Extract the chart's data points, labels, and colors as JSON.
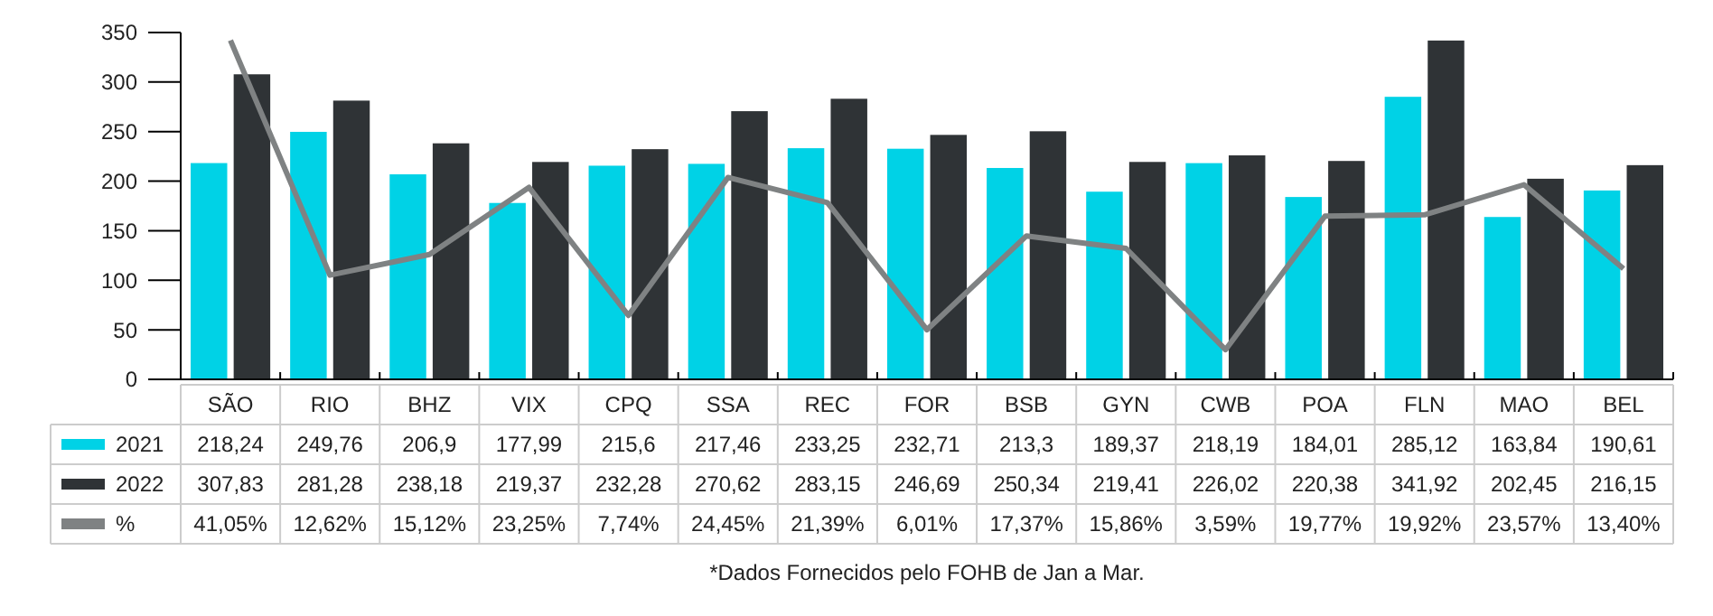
{
  "chart_data": {
    "type": "bar",
    "categories": [
      "SÃO",
      "RIO",
      "BHZ",
      "VIX",
      "CPQ",
      "SSA",
      "REC",
      "FOR",
      "BSB",
      "GYN",
      "CWB",
      "POA",
      "FLN",
      "MAO",
      "BEL"
    ],
    "series": [
      {
        "name": "2021",
        "color": "#00d2e6",
        "values": [
          218.24,
          249.76,
          206.9,
          177.99,
          215.6,
          217.46,
          233.25,
          232.71,
          213.3,
          189.37,
          218.19,
          184.01,
          285.12,
          163.84,
          190.61
        ],
        "value_labels": [
          "218,24",
          "249,76",
          "206,9",
          "177,99",
          "215,6",
          "217,46",
          "233,25",
          "232,71",
          "213,3",
          "189,37",
          "218,19",
          "184,01",
          "285,12",
          "163,84",
          "190,61"
        ]
      },
      {
        "name": "2022",
        "color": "#2f3336",
        "values": [
          307.83,
          281.28,
          238.18,
          219.37,
          232.28,
          270.62,
          283.15,
          246.69,
          250.34,
          219.41,
          226.02,
          220.38,
          341.92,
          202.45,
          216.15
        ],
        "value_labels": [
          "307,83",
          "281,28",
          "238,18",
          "219,37",
          "232,28",
          "270,62",
          "283,15",
          "246,69",
          "250,34",
          "219,41",
          "226,02",
          "220,38",
          "341,92",
          "202,45",
          "216,15"
        ]
      },
      {
        "name": "%",
        "type": "line",
        "axis": "y2",
        "color": "#7f8283",
        "values": [
          41.05,
          12.62,
          15.12,
          23.25,
          7.74,
          24.45,
          21.39,
          6.01,
          17.37,
          15.86,
          3.59,
          19.77,
          19.92,
          23.57,
          13.4
        ],
        "value_labels": [
          "41,05%",
          "12,62%",
          "15,12%",
          "23,25%",
          "7,74%",
          "24,45%",
          "21,39%",
          "6,01%",
          "17,37%",
          "15,86%",
          "3,59%",
          "19,77%",
          "19,92%",
          "23,57%",
          "13,40%"
        ]
      }
    ],
    "ylim": [
      0,
      350
    ],
    "yticks": [
      0,
      50,
      100,
      150,
      200,
      250,
      300,
      350
    ],
    "y2lim": [
      0,
      42
    ],
    "grid": false,
    "legend": "bottom left",
    "marker": "none",
    "line_style": "solid",
    "annotations": [
      "*Dados Fornecidos pelo FOHB de Jan a Mar."
    ]
  }
}
